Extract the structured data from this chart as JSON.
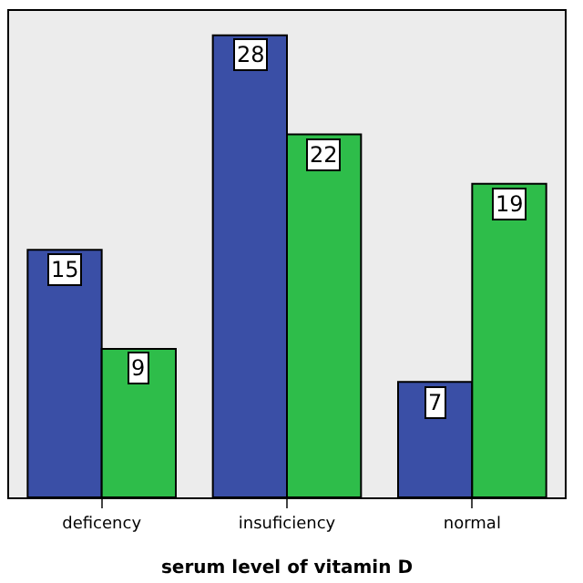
{
  "chart_data": {
    "type": "bar",
    "xlabel": "serum level of vitamin D",
    "categories": [
      "deficency",
      "insuficiency",
      "normal"
    ],
    "series": [
      {
        "color": "#3a4fa6",
        "values": [
          15,
          28,
          7
        ]
      },
      {
        "color": "#2ebd4a",
        "values": [
          9,
          22,
          19
        ]
      }
    ],
    "data_labels": true,
    "tick_labels": "x"
  }
}
